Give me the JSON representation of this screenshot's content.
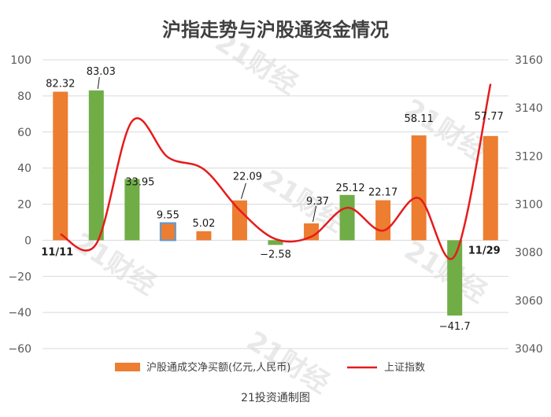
{
  "chart_data": {
    "type": "bar",
    "title": "沪指走势与沪股通资金情况",
    "source": "21投资通制图",
    "watermark": "21财经",
    "categories": [
      "11/11",
      "",
      "",
      "",
      "",
      "",
      "",
      "",
      "",
      "",
      "",
      "",
      "11/29"
    ],
    "series": [
      {
        "name": "沪股通成交净买额(亿元,人民币)",
        "kind": "bar",
        "axis": "left",
        "values": [
          82.32,
          83.03,
          33.95,
          9.55,
          5.02,
          22.09,
          -2.58,
          9.37,
          25.12,
          22.17,
          58.11,
          -41.7,
          57.77
        ],
        "labels": [
          "82.32",
          "83.03",
          "33.95",
          "9.55",
          "5.02",
          "22.09",
          "−2.58",
          "9.37",
          "25.12",
          "22.17",
          "58.11",
          "−41.7",
          "57.77"
        ],
        "colors": [
          "#ed7d31",
          "#70ad47",
          "#70ad47",
          "#ed7d31",
          "#ed7d31",
          "#ed7d31",
          "#70ad47",
          "#ed7d31",
          "#70ad47",
          "#ed7d31",
          "#ed7d31",
          "#70ad47",
          "#ed7d31"
        ],
        "outlined": [
          false,
          false,
          false,
          true,
          false,
          false,
          false,
          false,
          false,
          false,
          false,
          false,
          false
        ]
      },
      {
        "name": "上证指数",
        "kind": "line",
        "axis": "right",
        "color": "#e51c1c",
        "values": [
          3087.5,
          3083.5,
          3134.5,
          3119.5,
          3114.5,
          3097.5,
          3085.5,
          3086.5,
          3098.5,
          3089.0,
          3102.5,
          3078.5,
          3150.0
        ]
      }
    ],
    "ylim": [
      -60,
      100
    ],
    "yticks": [
      "100",
      "80",
      "60",
      "40",
      "20",
      "0",
      "−20",
      "−40",
      "−60"
    ],
    "y2lim": [
      3040,
      3160
    ],
    "y2ticks": [
      "3160",
      "3140",
      "3120",
      "3100",
      "3080",
      "3060",
      "3040"
    ],
    "grid": true,
    "legend": "bottom"
  }
}
